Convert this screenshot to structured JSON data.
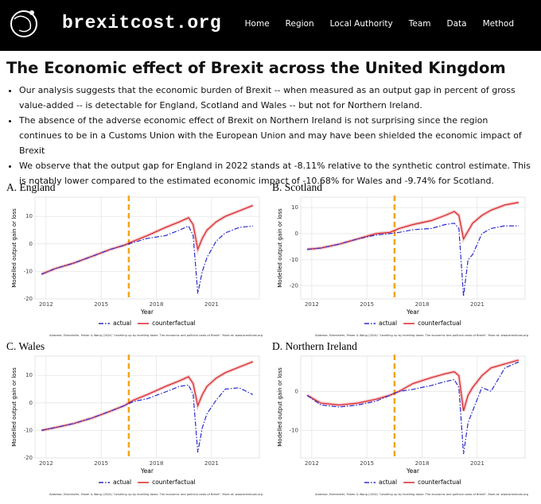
{
  "header": {
    "logo": "brexitcost.org",
    "nav": [
      "Home",
      "Region",
      "Local Authority",
      "Team",
      "Data",
      "Method"
    ]
  },
  "title": "The Economic effect of Brexit across the United Kingdom",
  "bullets": [
    "Our analysis suggests that the economic burden of Brexit -- when measured as an output gap in percent of gross value-added -- is detectable for England, Scotland and Wales -- but not for Northern Ireland.",
    "The absence of the adverse economic effect of Brexit on Northern Ireland is not surprising since the region continues to be in a Customs Union with the European Union and may have been shielded the economic impact of Brexit",
    "We observe that the output gap for England in 2022 stands at -8.11% relative to the synthetic control estimate. This is notably lower compared to the estimated economic impact of -10.68% for Wales and -9.74% for Scotland."
  ],
  "chart_data": [
    {
      "type": "line",
      "title": "A. England",
      "x_label": "Year",
      "y_label": "Modelled output gain or loss",
      "x": [
        2011.75,
        2012.5,
        2013.5,
        2014.5,
        2015.5,
        2016.25,
        2016.75,
        2017.5,
        2018.5,
        2019.25,
        2019.75,
        2020.0,
        2020.25,
        2020.5,
        2020.75,
        2021.25,
        2021.75,
        2022.5,
        2023.25
      ],
      "xlim": [
        2011.4,
        2023.6
      ],
      "xticks": [
        2012,
        2015,
        2018,
        2021
      ],
      "ylim": [
        -20,
        17
      ],
      "yticks": [
        -20,
        -10,
        0,
        10
      ],
      "vline": 2016.5,
      "vline_color": "#f2a516",
      "grid": true,
      "series": [
        {
          "name": "actual",
          "color": "#2a2ad0",
          "values": [
            -11,
            -9,
            -7,
            -4.5,
            -2,
            -0.5,
            0.5,
            2,
            3,
            5,
            6.5,
            3,
            -18,
            -10,
            -5,
            1,
            4,
            6,
            6.5
          ]
        },
        {
          "name": "counterfactual",
          "color": "#d9262c",
          "values": [
            -11,
            -9,
            -7,
            -4.5,
            -2,
            -0.5,
            1,
            3,
            6,
            8,
            9.5,
            7,
            -2,
            2,
            5,
            8,
            10,
            12,
            14
          ]
        }
      ],
      "caption": "Alabrese, Eidenhofer, Fetzer & Wang (2024) \"Levelling up by levelling down: The economic and political costs of Brexit\". More at: www.brexitcost.org"
    },
    {
      "type": "line",
      "title": "B. Scotland",
      "x_label": "Year",
      "y_label": "Modelled output gain or loss",
      "x": [
        2011.75,
        2012.5,
        2013.5,
        2014.5,
        2015.5,
        2016.25,
        2016.75,
        2017.5,
        2018.5,
        2019.25,
        2019.75,
        2020.0,
        2020.25,
        2020.5,
        2020.75,
        2021.25,
        2021.75,
        2022.5,
        2023.25
      ],
      "xlim": [
        2011.4,
        2023.6
      ],
      "xticks": [
        2012,
        2015,
        2018,
        2021
      ],
      "ylim": [
        -25,
        14
      ],
      "yticks": [
        -20,
        -10,
        0,
        10
      ],
      "vline": 2016.5,
      "vline_color": "#f2a516",
      "grid": true,
      "series": [
        {
          "name": "actual",
          "color": "#2a2ad0",
          "values": [
            -6,
            -5.5,
            -4,
            -2,
            -0.5,
            0,
            0.5,
            1.5,
            2,
            3.5,
            4,
            2,
            -24,
            -10,
            -8,
            0,
            2,
            3,
            3
          ]
        },
        {
          "name": "counterfactual",
          "color": "#d9262c",
          "values": [
            -6,
            -5.5,
            -4,
            -2,
            0,
            0.5,
            2,
            3.5,
            5,
            7,
            8.5,
            7,
            -2,
            1,
            4,
            7,
            9,
            11,
            12
          ]
        }
      ],
      "caption": "Alabrese, Eidenhofer, Fetzer & Wang (2024) \"Levelling up by levelling down: The economic and political costs of Brexit\". More at: www.brexitcost.org"
    },
    {
      "type": "line",
      "title": "C. Wales",
      "x_label": "Year",
      "y_label": "Modelled output gain or loss",
      "x": [
        2011.75,
        2012.5,
        2013.5,
        2014.5,
        2015.5,
        2016.25,
        2016.75,
        2017.5,
        2018.5,
        2019.25,
        2019.75,
        2020.0,
        2020.25,
        2020.5,
        2020.75,
        2021.25,
        2021.75,
        2022.5,
        2023.25
      ],
      "xlim": [
        2011.4,
        2023.6
      ],
      "xticks": [
        2012,
        2015,
        2018,
        2021
      ],
      "ylim": [
        -20,
        17
      ],
      "yticks": [
        -20,
        -10,
        0,
        10
      ],
      "vline": 2016.5,
      "vline_color": "#f2a516",
      "grid": true,
      "series": [
        {
          "name": "actual",
          "color": "#2a2ad0",
          "values": [
            -10,
            -9,
            -7.5,
            -5.5,
            -3,
            -1,
            0.5,
            1.5,
            4,
            6,
            6.5,
            3,
            -18,
            -9,
            -4,
            1,
            5,
            5.5,
            3
          ]
        },
        {
          "name": "counterfactual",
          "color": "#d9262c",
          "values": [
            -10,
            -9,
            -7.5,
            -5.5,
            -3,
            -1,
            1,
            3,
            6,
            8,
            9.5,
            7,
            -1,
            3,
            6,
            9,
            11,
            13,
            15
          ]
        }
      ],
      "caption": "Alabrese, Eidenhofer, Fetzer & Wang (2024) \"Levelling up by levelling down: The economic and political costs of Brexit\". More at: www.brexitcost.org"
    },
    {
      "type": "line",
      "title": "D. Northern Ireland",
      "x_label": "Year",
      "y_label": "Modelled output gain or loss",
      "x": [
        2011.75,
        2012.5,
        2013.5,
        2014.5,
        2015.5,
        2016.25,
        2016.75,
        2017.5,
        2018.5,
        2019.25,
        2019.75,
        2020.0,
        2020.25,
        2020.5,
        2020.75,
        2021.25,
        2021.75,
        2022.5,
        2023.25
      ],
      "xlim": [
        2011.4,
        2023.6
      ],
      "xticks": [
        2012,
        2015,
        2018,
        2021
      ],
      "ylim": [
        -17,
        9
      ],
      "yticks": [
        -10,
        0
      ],
      "vline": 2016.5,
      "vline_color": "#f2a516",
      "grid": true,
      "series": [
        {
          "name": "actual",
          "color": "#2a2ad0",
          "values": [
            -1,
            -3.5,
            -4,
            -3.5,
            -2.5,
            -1,
            0,
            0.5,
            1.5,
            2.5,
            3,
            1,
            -16,
            -8,
            -5,
            1,
            0,
            6,
            7.5
          ]
        },
        {
          "name": "counterfactual",
          "color": "#d9262c",
          "values": [
            -1,
            -3,
            -3.5,
            -3,
            -2,
            -1,
            0,
            2,
            3.5,
            4.5,
            5,
            4,
            -5,
            -1,
            1,
            4,
            6,
            7,
            8
          ]
        }
      ],
      "caption": "Alabrese, Eidenhofer, Fetzer & Wang (2024) \"Levelling up by levelling down: The economic and political costs of Brexit\". More at: www.brexitcost.org"
    }
  ]
}
